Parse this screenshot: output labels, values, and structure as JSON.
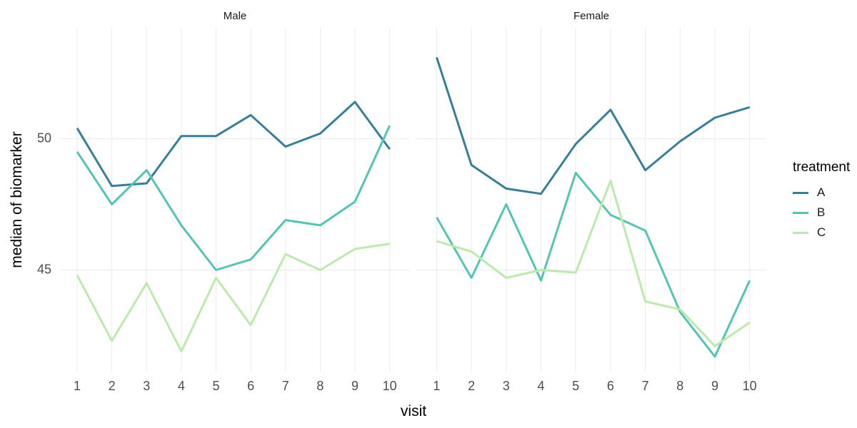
{
  "figure_title": "",
  "axes": {
    "x_title": "visit",
    "y_title": "median of biomarker",
    "x_tick_labels": [
      "1",
      "2",
      "3",
      "4",
      "5",
      "6",
      "7",
      "8",
      "9",
      "10"
    ],
    "x_tick_values": [
      1,
      2,
      3,
      4,
      5,
      6,
      7,
      8,
      9,
      10
    ],
    "y_tick_labels": [
      "45",
      "50"
    ],
    "y_tick_values": [
      45,
      50
    ]
  },
  "legend": {
    "title": "treatment",
    "entries": [
      {
        "label": "A",
        "color": "#377F99"
      },
      {
        "label": "B",
        "color": "#52C5B3"
      },
      {
        "label": "C",
        "color": "#BCEAAD"
      }
    ]
  },
  "colors": {
    "gridline": "#EBEBEB",
    "tick_text": "#4D4D4D",
    "title_text": "#000000",
    "strip_text": "#1A1A1A",
    "background": "#FFFFFF"
  },
  "chart_data": [
    {
      "type": "line",
      "facet": "Male",
      "x": [
        1,
        2,
        3,
        4,
        5,
        6,
        7,
        8,
        9,
        10
      ],
      "series": [
        {
          "name": "A",
          "color": "#377F99",
          "values": [
            50.4,
            48.2,
            48.3,
            50.1,
            50.1,
            50.9,
            49.7,
            50.2,
            51.4,
            49.6
          ]
        },
        {
          "name": "B",
          "color": "#52C5B3",
          "values": [
            49.5,
            47.5,
            48.8,
            46.7,
            45.0,
            45.4,
            46.9,
            46.7,
            47.6,
            50.5
          ]
        },
        {
          "name": "C",
          "color": "#BCEAAD",
          "values": [
            44.8,
            42.3,
            44.5,
            41.9,
            44.7,
            42.9,
            45.6,
            45.0,
            45.8,
            46.0
          ]
        }
      ],
      "xlabel": "visit",
      "ylabel": "median of biomarker",
      "xlim": [
        1,
        10
      ],
      "ylim": [
        41.1,
        54.25
      ],
      "grid": true,
      "legend_position": "right"
    },
    {
      "type": "line",
      "facet": "Female",
      "x": [
        1,
        2,
        3,
        4,
        5,
        6,
        7,
        8,
        9,
        10
      ],
      "series": [
        {
          "name": "A",
          "color": "#377F99",
          "values": [
            53.1,
            49.0,
            48.1,
            47.9,
            49.8,
            51.1,
            48.8,
            49.9,
            50.8,
            51.2
          ]
        },
        {
          "name": "B",
          "color": "#52C5B3",
          "values": [
            47.0,
            44.7,
            47.5,
            44.6,
            48.7,
            47.1,
            46.5,
            43.4,
            41.7,
            44.6
          ]
        },
        {
          "name": "C",
          "color": "#BCEAAD",
          "values": [
            46.1,
            45.7,
            44.7,
            45.0,
            44.9,
            48.4,
            43.8,
            43.5,
            42.1,
            43.0
          ]
        }
      ],
      "xlabel": "visit",
      "ylabel": "median of biomarker",
      "xlim": [
        1,
        10
      ],
      "ylim": [
        41.1,
        54.25
      ],
      "grid": true,
      "legend_position": "right"
    }
  ]
}
